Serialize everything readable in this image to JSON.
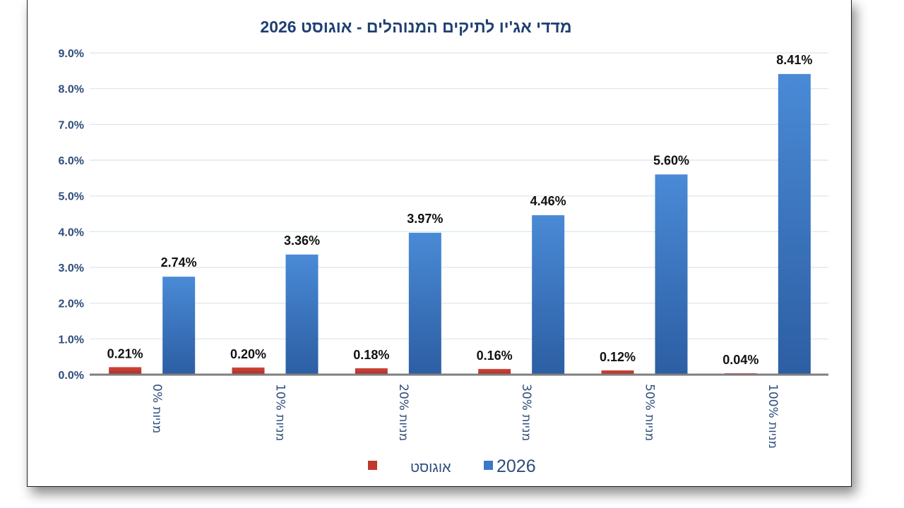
{
  "chart_data": {
    "type": "bar",
    "title": "מדדי אג'יו לתיקים המנוהלים  -  אוגוסט 2026",
    "categories": [
      "מניות 0%",
      "מניות 10%",
      "מניות 20%",
      "מניות 30%",
      "מניות 50%",
      "מניות 100%"
    ],
    "series": [
      {
        "name": "אוגוסט",
        "color": "#c0392b",
        "values": [
          0.21,
          0.2,
          0.18,
          0.16,
          0.12,
          0.04
        ],
        "labels": [
          "0.21%",
          "0.20%",
          "0.18%",
          "0.16%",
          "0.12%",
          "0.04%"
        ]
      },
      {
        "name": "2026",
        "color": "#3a78c9",
        "values": [
          2.74,
          3.36,
          3.97,
          4.46,
          5.6,
          8.41
        ],
        "labels": [
          "2.74%",
          "3.36%",
          "3.97%",
          "4.46%",
          "5.60%",
          "8.41%"
        ]
      }
    ],
    "ylim": [
      0,
      9
    ],
    "yticks": [
      "0.0%",
      "1.0%",
      "2.0%",
      "3.0%",
      "4.0%",
      "5.0%",
      "6.0%",
      "7.0%",
      "8.0%",
      "9.0%"
    ],
    "grid": true,
    "legend_position": "bottom",
    "title_color": "#1f3f73",
    "axis_text_color": "#2e4d7b",
    "grid_color": "#d6e4f0"
  }
}
